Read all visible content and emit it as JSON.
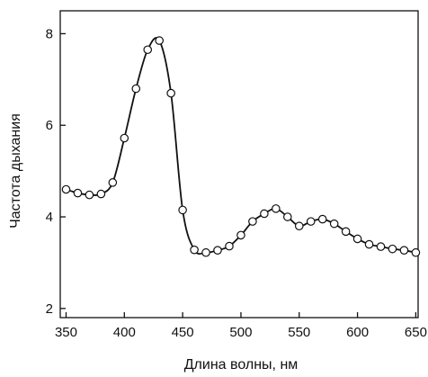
{
  "chart_data": {
    "type": "line",
    "title": "",
    "xlabel": "Длина волны, нм",
    "ylabel": "Частота дыхания",
    "xlim": [
      345,
      652
    ],
    "ylim": [
      1.8,
      8.5
    ],
    "xticks": [
      350,
      400,
      450,
      500,
      550,
      600,
      650
    ],
    "yticks": [
      2,
      4,
      6,
      8
    ],
    "x": [
      350,
      360,
      370,
      380,
      390,
      400,
      410,
      420,
      430,
      440,
      450,
      460,
      470,
      480,
      490,
      500,
      510,
      520,
      530,
      540,
      550,
      560,
      570,
      580,
      590,
      600,
      610,
      620,
      630,
      640,
      650
    ],
    "series": [
      {
        "values": [
          4.6,
          4.52,
          4.48,
          4.5,
          4.75,
          5.72,
          6.8,
          7.65,
          7.85,
          6.7,
          4.15,
          3.28,
          3.22,
          3.27,
          3.36,
          3.6,
          3.9,
          4.07,
          4.18,
          4.0,
          3.8,
          3.9,
          3.95,
          3.85,
          3.68,
          3.52,
          3.4,
          3.35,
          3.3,
          3.27,
          3.22
        ]
      }
    ],
    "grid": false,
    "legend": "none",
    "marker": "open-circle",
    "colors": {
      "line": "#111111",
      "marker_fill": "#ffffff",
      "axis": "#111111"
    }
  }
}
